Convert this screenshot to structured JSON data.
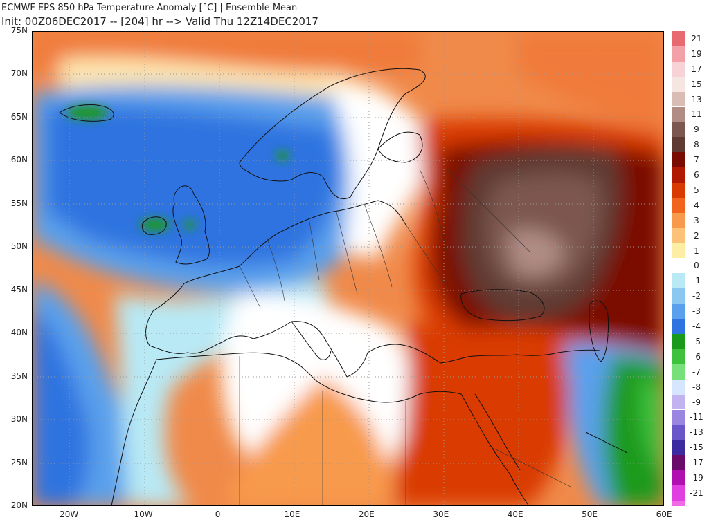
{
  "header": {
    "title": "ECMWF EPS 850 hPa Temperature Anomaly [°C] | Ensemble Mean",
    "subtitle": "Init: 00Z06DEC2017 -- [204] hr --> Valid Thu 12Z14DEC2017"
  },
  "axes": {
    "lat_labels": [
      "75N",
      "70N",
      "65N",
      "60N",
      "55N",
      "50N",
      "45N",
      "40N",
      "35N",
      "30N",
      "25N",
      "20N"
    ],
    "lon_labels": [
      "20W",
      "10W",
      "0",
      "10E",
      "20E",
      "30E",
      "40E",
      "50E",
      "60E"
    ]
  },
  "legend": {
    "labels": [
      "21",
      "19",
      "17",
      "15",
      "13",
      "11",
      "9",
      "8",
      "7",
      "6",
      "5",
      "4",
      "3",
      "2",
      "1",
      "0",
      "-1",
      "-2",
      "-3",
      "-4",
      "-5",
      "-6",
      "-7",
      "-8",
      "-9",
      "-11",
      "-13",
      "-15",
      "-17",
      "-19",
      "-21"
    ],
    "colors": [
      "#e86a70",
      "#f2a1a8",
      "#f7d2d6",
      "#f6e6e2",
      "#d9bcb4",
      "#b08c84",
      "#7b574f",
      "#5e3a32",
      "#7a0b00",
      "#b01800",
      "#d93a00",
      "#f0641e",
      "#f89a4c",
      "#fbc278",
      "#fdeea6",
      "#ffffff",
      "#b8e9f5",
      "#8ac8f2",
      "#5aa0ec",
      "#2f73e0",
      "#1a9a1a",
      "#3ec23e",
      "#78e078",
      "#d6e6ff",
      "#c2b2f0",
      "#9a86e0",
      "#6a56c8",
      "#3c2aa0",
      "#6a0a6a",
      "#b010b0",
      "#e040e0"
    ],
    "bottom_color": "#f06ae6"
  },
  "colors": {
    "land_border": "#111111",
    "lake": "#6a6a6a",
    "grid_dots": "#9a9a9a"
  }
}
